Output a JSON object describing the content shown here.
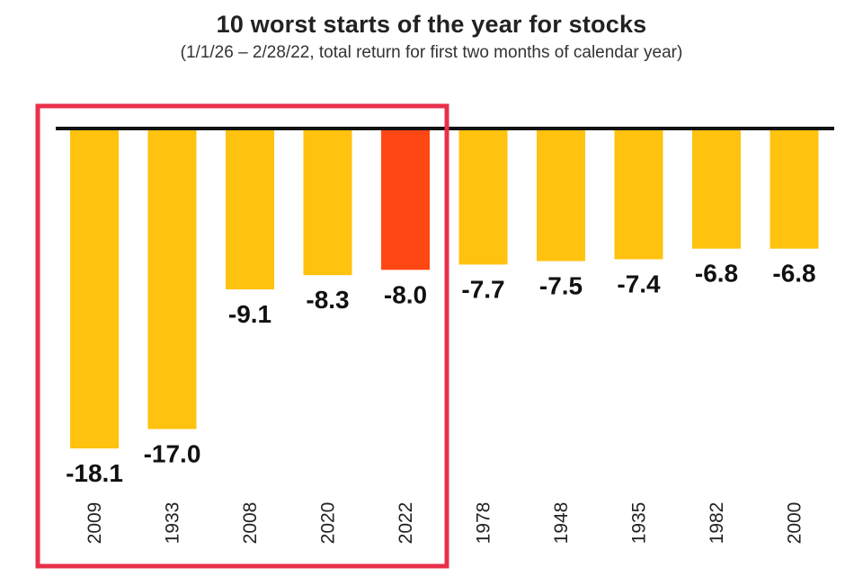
{
  "chart_data": {
    "type": "bar",
    "title": "10 worst starts of the year for stocks",
    "subtitle": "(1/1/26 – 2/28/22, total return for first two months of calendar year)",
    "categories": [
      "2009",
      "1933",
      "2008",
      "2020",
      "2022",
      "1978",
      "1948",
      "1935",
      "1982",
      "2000"
    ],
    "values": [
      -18.1,
      -17.0,
      -9.1,
      -8.3,
      -8.0,
      -7.7,
      -7.5,
      -7.4,
      -6.8,
      -6.8
    ],
    "value_labels": [
      "-18.1",
      "-17.0",
      "-9.1",
      "-8.3",
      "-8.0",
      "-7.7",
      "-7.5",
      "-7.4",
      "-6.8",
      "-6.8"
    ],
    "highlight_category": "2022",
    "highlighted_group": [
      "2009",
      "1933",
      "2008",
      "2020",
      "2022"
    ],
    "ylim": [
      -18.1,
      0
    ],
    "grid": false,
    "colors": {
      "bar": "#FFC20E",
      "highlight_bar": "#FF4713",
      "baseline": "#111111",
      "group_box": "#E8304A"
    }
  }
}
